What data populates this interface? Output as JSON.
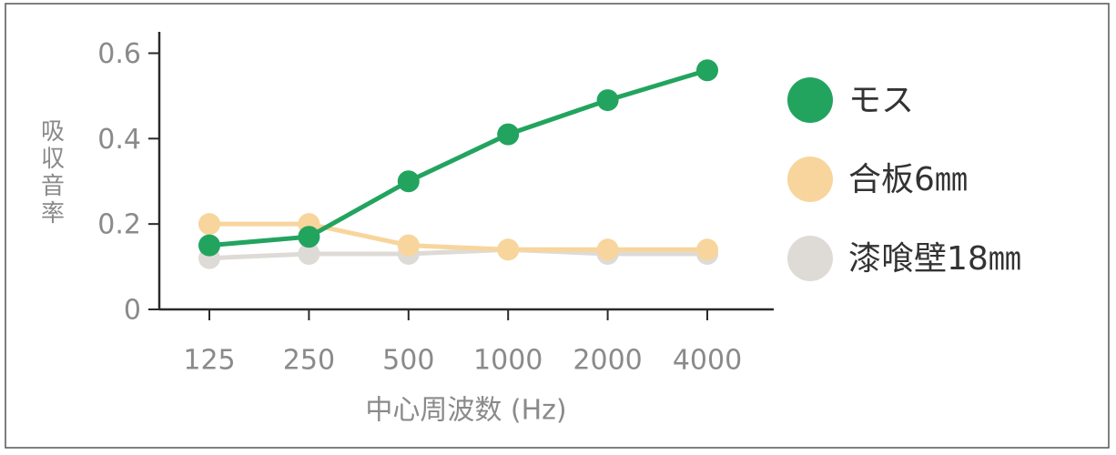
{
  "chart_data": {
    "type": "line",
    "y_label": "吸収音率",
    "x_label": "中心周波数 (Hz)",
    "categories": [
      "125",
      "250",
      "500",
      "1000",
      "2000",
      "4000"
    ],
    "series": [
      {
        "name": "モス",
        "color": "#22a45f",
        "values": [
          0.15,
          0.17,
          0.3,
          0.41,
          0.49,
          0.56
        ]
      },
      {
        "name": "合板6㎜",
        "color": "#f8d59c",
        "values": [
          0.2,
          0.2,
          0.15,
          0.14,
          0.14,
          0.14
        ]
      },
      {
        "name": "漆喰壁18㎜",
        "color": "#dedbd7",
        "values": [
          0.12,
          0.13,
          0.13,
          0.14,
          0.13,
          0.13
        ]
      }
    ],
    "ylim": [
      0,
      0.65
    ],
    "yticks": [
      0,
      0.2,
      0.4,
      0.6
    ],
    "legend": "right"
  }
}
